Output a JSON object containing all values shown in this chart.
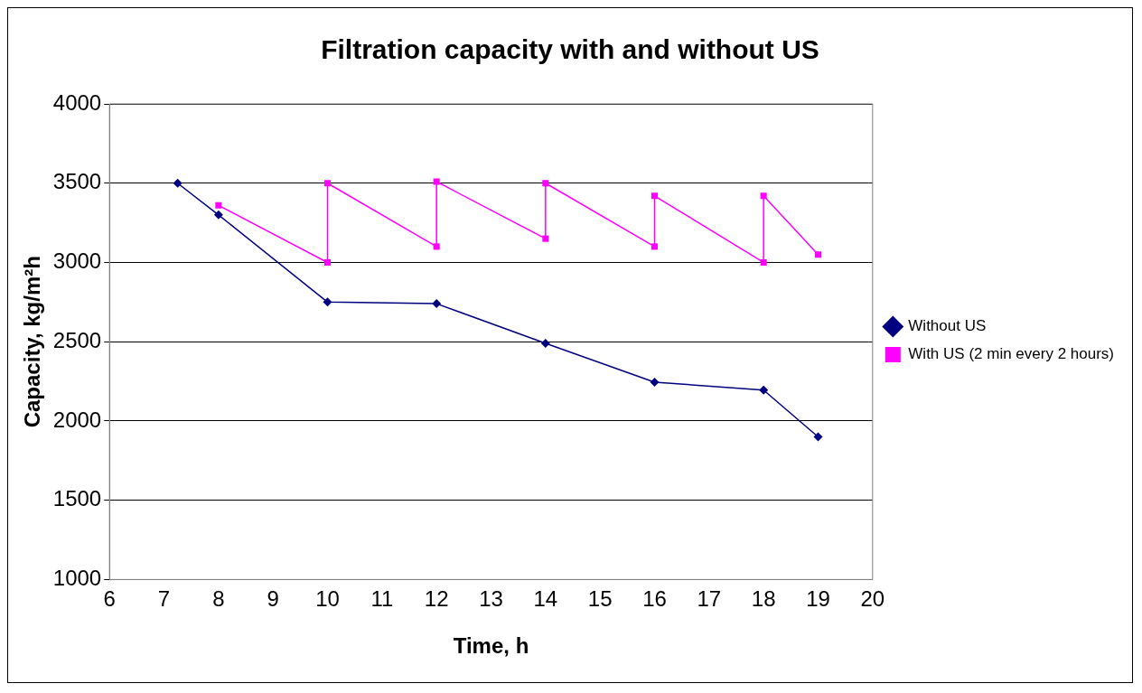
{
  "chart_data": {
    "type": "line",
    "title": "Filtration capacity with and without US",
    "xlabel": "Time, h",
    "ylabel": "Capacity, kg/m²h",
    "xlim": [
      6,
      20
    ],
    "xticks": [
      6,
      7,
      8,
      9,
      10,
      11,
      12,
      13,
      14,
      15,
      16,
      17,
      18,
      19,
      20
    ],
    "ylim": [
      1000,
      4000
    ],
    "yticks": [
      1000,
      1500,
      2000,
      2500,
      3000,
      3500,
      4000
    ],
    "grid": "y",
    "legend": "right",
    "line_style": "solid",
    "series": [
      {
        "name": "Without US",
        "color": "#000080",
        "marker": "diamond",
        "x": [
          7.25,
          8,
          10,
          12,
          14,
          16,
          18,
          19
        ],
        "values": [
          3500,
          3300,
          2750,
          2740,
          2490,
          2245,
          2195,
          1900
        ]
      },
      {
        "name": "With US (2 min every 2 hours)",
        "color": "#ff00ff",
        "marker": "square",
        "x": [
          8,
          10,
          10,
          12,
          12,
          14,
          14,
          16,
          16,
          18,
          18,
          19
        ],
        "values": [
          3360,
          3000,
          3500,
          3100,
          3510,
          3150,
          3500,
          3100,
          3420,
          3000,
          3420,
          3050
        ]
      }
    ]
  }
}
